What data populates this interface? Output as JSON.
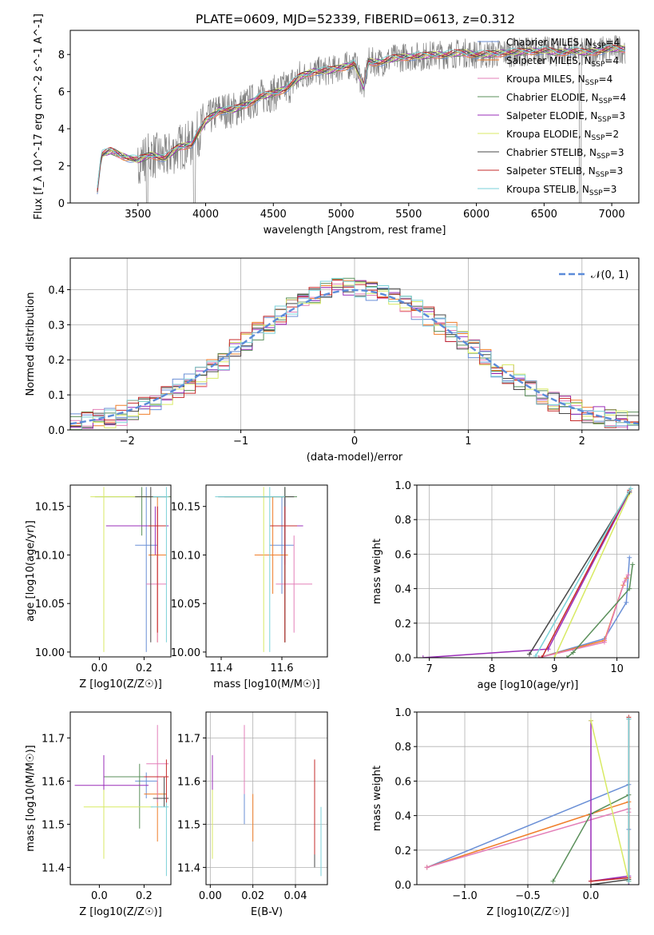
{
  "title": "PLATE=0609, MJD=52339, FIBERID=0613, z=0.312",
  "model_colors": [
    "#6a8fd6",
    "#f07e2a",
    "#e37fb8",
    "#5a8f5a",
    "#9a2db8",
    "#d8ea64",
    "#484848",
    "#c62b2b",
    "#7ad2d8"
  ],
  "chart_data": [
    {
      "id": "spectrum",
      "type": "line",
      "title": "PLATE=0609, MJD=52339, FIBERID=0613, z=0.312",
      "xlabel": "wavelength [Angstrom, rest frame]",
      "ylabel": "Flux [f_λ 10^-17 erg cm^-2 s^-1 A^-1]",
      "xlim": [
        3000,
        7200
      ],
      "ylim": [
        0,
        9.3
      ],
      "xticks": [
        "3500",
        "4000",
        "4500",
        "5000",
        "5500",
        "6000",
        "6500",
        "7000"
      ],
      "yticks": [
        "0",
        "2",
        "4",
        "6",
        "8"
      ],
      "data_color": "#808080",
      "data_range": [
        3200,
        7100
      ],
      "continuum": [
        [
          3200,
          0.7
        ],
        [
          3230,
          2.6
        ],
        [
          3300,
          2.8
        ],
        [
          3400,
          2.5
        ],
        [
          3500,
          2.3
        ],
        [
          3600,
          2.6
        ],
        [
          3700,
          2.4
        ],
        [
          3800,
          3.0
        ],
        [
          3900,
          3.2
        ],
        [
          4000,
          4.4
        ],
        [
          4100,
          5.0
        ],
        [
          4200,
          5.0
        ],
        [
          4300,
          5.3
        ],
        [
          4400,
          5.7
        ],
        [
          4500,
          5.9
        ],
        [
          4600,
          6.2
        ],
        [
          4700,
          6.8
        ],
        [
          4800,
          7.1
        ],
        [
          4900,
          7.1
        ],
        [
          5000,
          7.3
        ],
        [
          5100,
          7.5
        ],
        [
          5170,
          6.2
        ],
        [
          5200,
          7.6
        ],
        [
          5300,
          7.6
        ],
        [
          5400,
          7.8
        ],
        [
          5500,
          7.9
        ],
        [
          5600,
          7.9
        ],
        [
          5700,
          8.0
        ],
        [
          5800,
          8.0
        ],
        [
          5900,
          8.1
        ],
        [
          6000,
          8.0
        ],
        [
          6100,
          8.0
        ],
        [
          6200,
          8.1
        ],
        [
          6300,
          8.1
        ],
        [
          6400,
          8.2
        ],
        [
          6500,
          8.2
        ],
        [
          6600,
          8.1
        ],
        [
          6700,
          8.2
        ],
        [
          6800,
          8.1
        ],
        [
          6900,
          8.2
        ],
        [
          7000,
          8.3
        ],
        [
          7100,
          8.3
        ]
      ],
      "models": [
        {
          "name": "Chabrier MILES, N_SSP=4",
          "label_main": "Chabrier MILES, N",
          "label_sub": "SSP",
          "label_end": "=4"
        },
        {
          "name": "Salpeter MILES, N_SSP=4",
          "label_main": "Salpeter MILES, N",
          "label_sub": "SSP",
          "label_end": "=4"
        },
        {
          "name": "Kroupa MILES, N_SSP=4",
          "label_main": "Kroupa MILES, N",
          "label_sub": "SSP",
          "label_end": "=4"
        },
        {
          "name": "Chabrier ELODIE, N_SSP=4",
          "label_main": "Chabrier ELODIE, N",
          "label_sub": "SSP",
          "label_end": "=4"
        },
        {
          "name": "Salpeter ELODIE, N_SSP=3",
          "label_main": "Salpeter ELODIE, N",
          "label_sub": "SSP",
          "label_end": "=3"
        },
        {
          "name": "Kroupa ELODIE, N_SSP=2",
          "label_main": "Kroupa ELODIE, N",
          "label_sub": "SSP",
          "label_end": "=2"
        },
        {
          "name": "Chabrier STELIB, N_SSP=3",
          "label_main": "Chabrier STELIB, N",
          "label_sub": "SSP",
          "label_end": "=3"
        },
        {
          "name": "Salpeter STELIB, N_SSP=3",
          "label_main": "Salpeter STELIB, N",
          "label_sub": "SSP",
          "label_end": "=3"
        },
        {
          "name": "Kroupa STELIB, N_SSP=3",
          "label_main": "Kroupa STELIB, N",
          "label_sub": "SSP",
          "label_end": "=3"
        }
      ],
      "grid": false,
      "legend": "right"
    },
    {
      "id": "residuals",
      "type": "line",
      "xlabel": "(data-model)/error",
      "ylabel": "Normed distribution",
      "xlim": [
        -2.5,
        2.5
      ],
      "ylim": [
        0,
        0.49
      ],
      "xticks": [
        "−2",
        "−1",
        "0",
        "1",
        "2"
      ],
      "yticks": [
        "0.0",
        "0.1",
        "0.2",
        "0.3",
        "0.4"
      ],
      "legend_label": "𝒩(0, 1)",
      "reference_curve": "normal(0,1)",
      "bins": [
        -2.5,
        -2.4,
        -2.3,
        -2.2,
        -2.1,
        -2.0,
        -1.9,
        -1.8,
        -1.7,
        -1.6,
        -1.5,
        -1.4,
        -1.3,
        -1.2,
        -1.1,
        -1.0,
        -0.9,
        -0.8,
        -0.7,
        -0.6,
        -0.5,
        -0.4,
        -0.3,
        -0.2,
        -0.1,
        0.0,
        0.1,
        0.2,
        0.3,
        0.4,
        0.5,
        0.6,
        0.7,
        0.8,
        0.9,
        1.0,
        1.1,
        1.2,
        1.3,
        1.4,
        1.5,
        1.6,
        1.7,
        1.8,
        1.9,
        2.0,
        2.1,
        2.2,
        2.3,
        2.4,
        2.5
      ],
      "hist_heights": [
        0.018,
        0.025,
        0.03,
        0.036,
        0.042,
        0.055,
        0.068,
        0.085,
        0.1,
        0.115,
        0.13,
        0.15,
        0.175,
        0.2,
        0.23,
        0.255,
        0.28,
        0.305,
        0.33,
        0.352,
        0.37,
        0.385,
        0.395,
        0.403,
        0.405,
        0.402,
        0.398,
        0.39,
        0.378,
        0.362,
        0.345,
        0.325,
        0.302,
        0.278,
        0.254,
        0.228,
        0.204,
        0.18,
        0.158,
        0.136,
        0.116,
        0.098,
        0.082,
        0.068,
        0.056,
        0.046,
        0.037,
        0.03,
        0.025,
        0.022
      ],
      "grid": true,
      "legend": "top-right"
    },
    {
      "id": "age-vs-Z",
      "type": "scatter",
      "xlabel": "Z [log10(Z/Z☉)]",
      "ylabel": "age  [log10(age/yr)]",
      "xlim": [
        -0.13,
        0.32
      ],
      "ylim": [
        9.995,
        10.172
      ],
      "xticks": [
        "0.0",
        "0.2"
      ],
      "yticks": [
        "10.00",
        "10.05",
        "10.10",
        "10.15"
      ],
      "points": [
        {
          "x": 0.21,
          "y": 10.11,
          "xerr": [
            0.05,
            0.05
          ],
          "yerr": [
            0.11,
            0.06
          ]
        },
        {
          "x": 0.26,
          "y": 10.1,
          "xerr": [
            0.04,
            0.04
          ],
          "yerr": [
            0.09,
            0.06
          ]
        },
        {
          "x": 0.26,
          "y": 10.07,
          "xerr": [
            0.05,
            0.04
          ],
          "yerr": [
            0.06,
            0.08
          ]
        },
        {
          "x": 0.19,
          "y": 10.16,
          "xerr": [
            0.21,
            0.13
          ],
          "yerr": [
            0.04,
            0.01
          ]
        },
        {
          "x": 0.25,
          "y": 10.13,
          "xerr": [
            0.22,
            0.06
          ],
          "yerr": [
            0.03,
            0.02
          ]
        },
        {
          "x": 0.02,
          "y": 10.16,
          "xerr": [
            0.06,
            0.24
          ],
          "yerr": [
            0.16,
            0.01
          ]
        },
        {
          "x": 0.23,
          "y": 10.16,
          "xerr": [
            0.07,
            0.07
          ],
          "yerr": [
            0.15,
            0.01
          ]
        },
        {
          "x": 0.26,
          "y": 10.13,
          "xerr": [
            0.04,
            0.04
          ],
          "yerr": [
            0.11,
            0.02
          ]
        },
        {
          "x": 0.3,
          "y": 10.16,
          "xerr": [
            0.06,
            0.01
          ],
          "yerr": [
            0.15,
            0.01
          ]
        }
      ],
      "grid": false
    },
    {
      "id": "age-vs-mass",
      "type": "scatter",
      "xlabel": "mass [log10(M/M☉)]",
      "ylabel": "",
      "xlim": [
        11.35,
        11.75
      ],
      "ylim": [
        9.995,
        10.172
      ],
      "xticks": [
        "11.4",
        "11.6"
      ],
      "yticks": [
        "10.00",
        "10.05",
        "10.10",
        "10.15"
      ],
      "points": [
        {
          "x": 11.6,
          "y": 10.11,
          "xerr": [
            0.04,
            0.04
          ],
          "yerr": [
            0.05,
            0.05
          ]
        },
        {
          "x": 11.57,
          "y": 10.1,
          "xerr": [
            0.06,
            0.05
          ],
          "yerr": [
            0.04,
            0.06
          ]
        },
        {
          "x": 11.64,
          "y": 10.07,
          "xerr": [
            0.06,
            0.06
          ],
          "yerr": [
            0.05,
            0.05
          ]
        },
        {
          "x": 11.61,
          "y": 10.16,
          "xerr": [
            0.2,
            0.04
          ],
          "yerr": [
            0.15,
            0.01
          ]
        },
        {
          "x": 11.61,
          "y": 10.13,
          "xerr": [
            0.05,
            0.06
          ],
          "yerr": [
            0.04,
            0.03
          ]
        },
        {
          "x": 11.54,
          "y": 10.16,
          "xerr": [
            0.1,
            0.08
          ],
          "yerr": [
            0.16,
            0.01
          ]
        },
        {
          "x": 11.61,
          "y": 10.16,
          "xerr": [
            0.22,
            0.03
          ],
          "yerr": [
            0.15,
            0.01
          ]
        },
        {
          "x": 11.61,
          "y": 10.13,
          "xerr": [
            0.05,
            0.04
          ],
          "yerr": [
            0.12,
            0.02
          ]
        },
        {
          "x": 11.56,
          "y": 10.16,
          "xerr": [
            0.18,
            0.05
          ],
          "yerr": [
            0.16,
            0.01
          ]
        }
      ],
      "grid": false
    },
    {
      "id": "weight-vs-age",
      "type": "line",
      "xlabel": "age  [log10(age/yr)]",
      "ylabel": "mass weight",
      "xlim": [
        6.8,
        10.35
      ],
      "ylim": [
        0,
        1.0
      ],
      "xticks": [
        "7",
        "8",
        "9",
        "10"
      ],
      "yticks": [
        "0.0",
        "0.2",
        "0.4",
        "0.6",
        "0.8",
        "1.0"
      ],
      "series": [
        {
          "x": [
            8.75,
            9.8,
            10.15,
            10.2
          ],
          "y": [
            0.0,
            0.11,
            0.32,
            0.58
          ]
        },
        {
          "x": [
            8.75,
            9.8,
            10.1,
            10.15
          ],
          "y": [
            0.0,
            0.1,
            0.42,
            0.46
          ]
        },
        {
          "x": [
            8.75,
            9.8,
            10.12,
            10.18
          ],
          "y": [
            0.0,
            0.09,
            0.44,
            0.48
          ]
        },
        {
          "x": [
            9.2,
            9.3,
            10.2,
            10.25
          ],
          "y": [
            0.0,
            0.03,
            0.4,
            0.54
          ]
        },
        {
          "x": [
            6.9,
            8.9,
            10.2
          ],
          "y": [
            0.0,
            0.05,
            0.96
          ]
        },
        {
          "x": [
            9.0,
            10.2
          ],
          "y": [
            0.0,
            0.95
          ]
        },
        {
          "x": [
            8.6,
            10.2
          ],
          "y": [
            0.02,
            0.96
          ]
        },
        {
          "x": [
            8.8,
            10.2
          ],
          "y": [
            0.0,
            0.97
          ]
        },
        {
          "x": [
            8.7,
            10.22
          ],
          "y": [
            0.01,
            0.98
          ]
        }
      ],
      "grid": true
    },
    {
      "id": "mass-vs-Z",
      "type": "scatter",
      "xlabel": "Z [log10(Z/Z☉)]",
      "ylabel": "mass [log10(M/M☉)]",
      "xlim": [
        -0.13,
        0.32
      ],
      "ylim": [
        11.36,
        11.76
      ],
      "xticks": [
        "0.0",
        "0.2"
      ],
      "yticks": [
        "11.4",
        "11.5",
        "11.6",
        "11.7"
      ],
      "points": [
        {
          "x": 0.21,
          "y": 11.6,
          "xerr": [
            0.05,
            0.05
          ],
          "yerr": [
            0.04,
            0.02
          ]
        },
        {
          "x": 0.26,
          "y": 11.57,
          "xerr": [
            0.06,
            0.04
          ],
          "yerr": [
            0.11,
            0.03
          ]
        },
        {
          "x": 0.26,
          "y": 11.64,
          "xerr": [
            0.05,
            0.05
          ],
          "yerr": [
            0.09,
            0.09
          ]
        },
        {
          "x": 0.18,
          "y": 11.61,
          "xerr": [
            0.16,
            0.12
          ],
          "yerr": [
            0.12,
            0.03
          ]
        },
        {
          "x": 0.02,
          "y": 11.59,
          "xerr": [
            0.13,
            0.2
          ],
          "yerr": [
            0.09,
            0.07
          ]
        },
        {
          "x": 0.02,
          "y": 11.54,
          "xerr": [
            0.09,
            0.22
          ],
          "yerr": [
            0.12,
            0.04
          ]
        },
        {
          "x": 0.29,
          "y": 11.56,
          "xerr": [
            0.05,
            0.02
          ],
          "yerr": [
            0.02,
            0.05
          ]
        },
        {
          "x": 0.3,
          "y": 11.61,
          "xerr": [
            0.1,
            0.01
          ],
          "yerr": [
            0.06,
            0.04
          ]
        },
        {
          "x": 0.3,
          "y": 11.54,
          "xerr": [
            0.07,
            0.01
          ],
          "yerr": [
            0.16,
            0.01
          ]
        }
      ],
      "grid": false
    },
    {
      "id": "mass-vs-EBV",
      "type": "scatter",
      "xlabel": "E(B-V)",
      "ylabel": "",
      "xlim": [
        -0.002,
        0.055
      ],
      "ylim": [
        11.36,
        11.76
      ],
      "xticks": [
        "0.00",
        "0.02",
        "0.04"
      ],
      "yticks": [
        "11.4",
        "11.5",
        "11.6",
        "11.7"
      ],
      "points": [
        {
          "x": 0.016,
          "y": 11.55,
          "xerr": [
            0,
            0
          ],
          "yerr": [
            0.05,
            0.03
          ]
        },
        {
          "x": 0.02,
          "y": 11.52,
          "xerr": [
            0,
            0
          ],
          "yerr": [
            0.06,
            0.05
          ]
        },
        {
          "x": 0.016,
          "y": 11.63,
          "xerr": [
            0,
            0
          ],
          "yerr": [
            0.06,
            0.1
          ]
        },
        {
          "x": 0.049,
          "y": 11.5,
          "xerr": [
            0,
            0
          ],
          "yerr": [
            0.06,
            0.08
          ]
        },
        {
          "x": 0.001,
          "y": 11.62,
          "xerr": [
            0,
            0
          ],
          "yerr": [
            0.05,
            0.04
          ]
        },
        {
          "x": 0.001,
          "y": 11.5,
          "xerr": [
            0,
            0
          ],
          "yerr": [
            0.08,
            0.08
          ]
        },
        {
          "x": 0.049,
          "y": 11.45,
          "xerr": [
            0,
            0
          ],
          "yerr": [
            0.05,
            0.02
          ]
        },
        {
          "x": 0.049,
          "y": 11.57,
          "xerr": [
            0,
            0
          ],
          "yerr": [
            0.14,
            0.08
          ]
        },
        {
          "x": 0.052,
          "y": 11.46,
          "xerr": [
            0,
            0
          ],
          "yerr": [
            0.08,
            0.08
          ]
        }
      ],
      "grid": true
    },
    {
      "id": "weight-vs-Z",
      "type": "line",
      "xlabel": "Z [log10(Z/Z☉)]",
      "ylabel": "mass weight",
      "xlim": [
        -1.38,
        0.38
      ],
      "ylim": [
        0,
        1.0
      ],
      "xticks": [
        "−1.0",
        "−0.5",
        "0.0"
      ],
      "yticks": [
        "0.0",
        "0.2",
        "0.4",
        "0.6",
        "0.8",
        "1.0"
      ],
      "series": [
        {
          "x": [
            -1.3,
            0.3,
            0.3
          ],
          "y": [
            0.1,
            0.58,
            0.32
          ]
        },
        {
          "x": [
            -1.3,
            0.0,
            0.3,
            0.3
          ],
          "y": [
            0.1,
            0.41,
            0.48,
            0.02
          ]
        },
        {
          "x": [
            -1.3,
            0.3,
            0.3
          ],
          "y": [
            0.1,
            0.44,
            0.42
          ]
        },
        {
          "x": [
            -0.3,
            0.0,
            0.3,
            0.3
          ],
          "y": [
            0.02,
            0.41,
            0.52,
            0.02
          ]
        },
        {
          "x": [
            0.0,
            0.0,
            0.3,
            0.3
          ],
          "y": [
            0.95,
            0.02,
            0.05,
            0.0
          ]
        },
        {
          "x": [
            0.0,
            0.3,
            0.3
          ],
          "y": [
            0.95,
            0.02,
            0.03
          ]
        },
        {
          "x": [
            0.0,
            0.3,
            0.3
          ],
          "y": [
            0.0,
            0.03,
            0.96
          ]
        },
        {
          "x": [
            0.0,
            0.3,
            0.3
          ],
          "y": [
            0.02,
            0.04,
            0.97
          ]
        },
        {
          "x": [
            0.3,
            0.3
          ],
          "y": [
            0.02,
            0.96
          ]
        }
      ],
      "grid": true
    }
  ]
}
